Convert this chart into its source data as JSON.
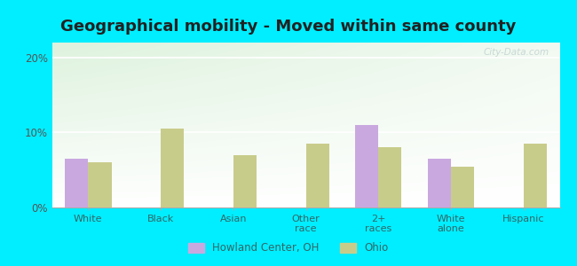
{
  "title": "Geographical mobility - Moved within same county",
  "categories": [
    "White",
    "Black",
    "Asian",
    "Other\nrace",
    "2+\nraces",
    "White\nalone",
    "Hispanic"
  ],
  "howland_values": [
    6.5,
    0,
    0,
    0,
    11.0,
    6.5,
    0
  ],
  "ohio_values": [
    6.0,
    10.5,
    7.0,
    8.5,
    8.0,
    5.5,
    8.5
  ],
  "howland_color": "#c9a8e0",
  "ohio_color": "#c8cc8a",
  "ylim": [
    0,
    22
  ],
  "yticks": [
    0,
    10,
    20
  ],
  "ytick_labels": [
    "0%",
    "10%",
    "20%"
  ],
  "background_outer": "#00eeff",
  "title_fontsize": 13,
  "legend_label_howland": "Howland Center, OH",
  "legend_label_ohio": "Ohio",
  "watermark": "City-Data.com",
  "grad_colors": [
    "#b5ddb5",
    "#f0f8f0",
    "#ffffff"
  ],
  "title_color": "#222222"
}
